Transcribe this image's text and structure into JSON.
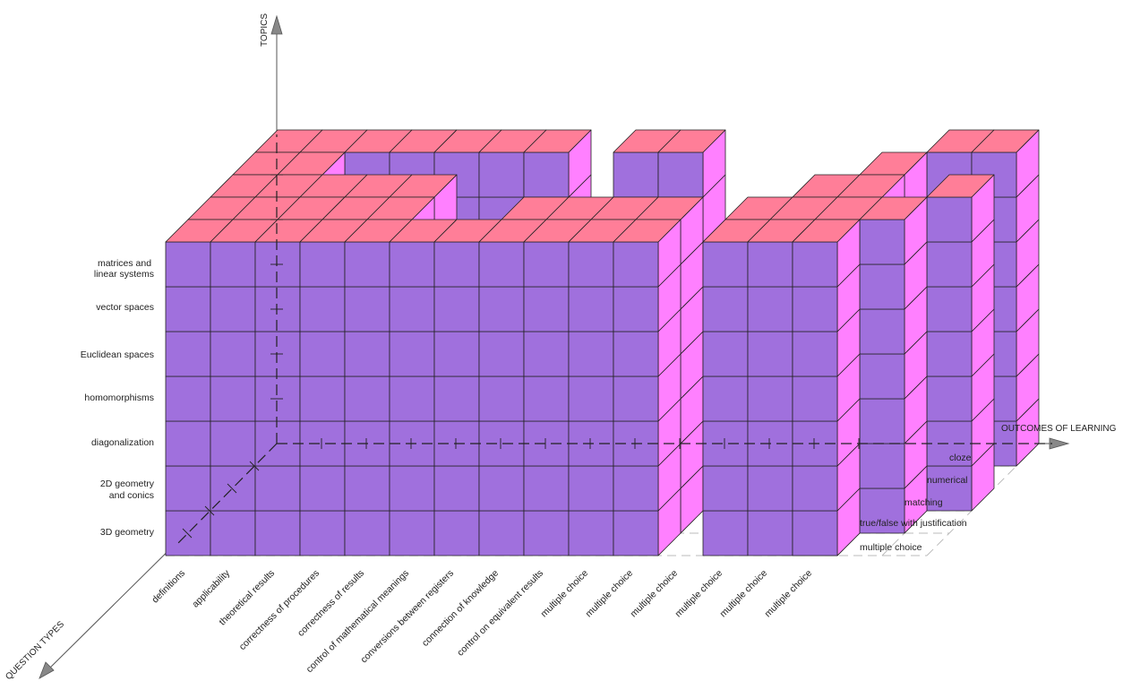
{
  "axes": {
    "topics_title": "TOPICS",
    "outcomes_title": "OUTCOMES OF LEARNING",
    "question_types_title": "QUESTION TYPES"
  },
  "topics": [
    "matrices and linear systems",
    "vector spaces",
    "Euclidean spaces",
    "homomorphisms",
    "diagonalization",
    "2D geometry and conics",
    "3D geometry"
  ],
  "outcomes": [
    "definitions",
    "applicability",
    "theoretical results",
    "correctness of procedures",
    "correctness of results",
    "control of mathematical meanings",
    "conversions between registers",
    "connection of knowledge",
    "control on equivalent results",
    "multiple choice",
    "multiple choice",
    "multiple choice",
    "multiple choice",
    "multiple choice",
    "multiple choice"
  ],
  "question_types": [
    "multiple choice",
    "true/false with justification",
    "matching",
    "numerical",
    "cloze"
  ],
  "colors": {
    "front_face": "#a070dd",
    "top_face": "#ff7e98",
    "side_face": "#ff80ff",
    "grid_line": "#222222",
    "axis": "#555555",
    "dashed_floor": "#bbbbbb"
  }
}
